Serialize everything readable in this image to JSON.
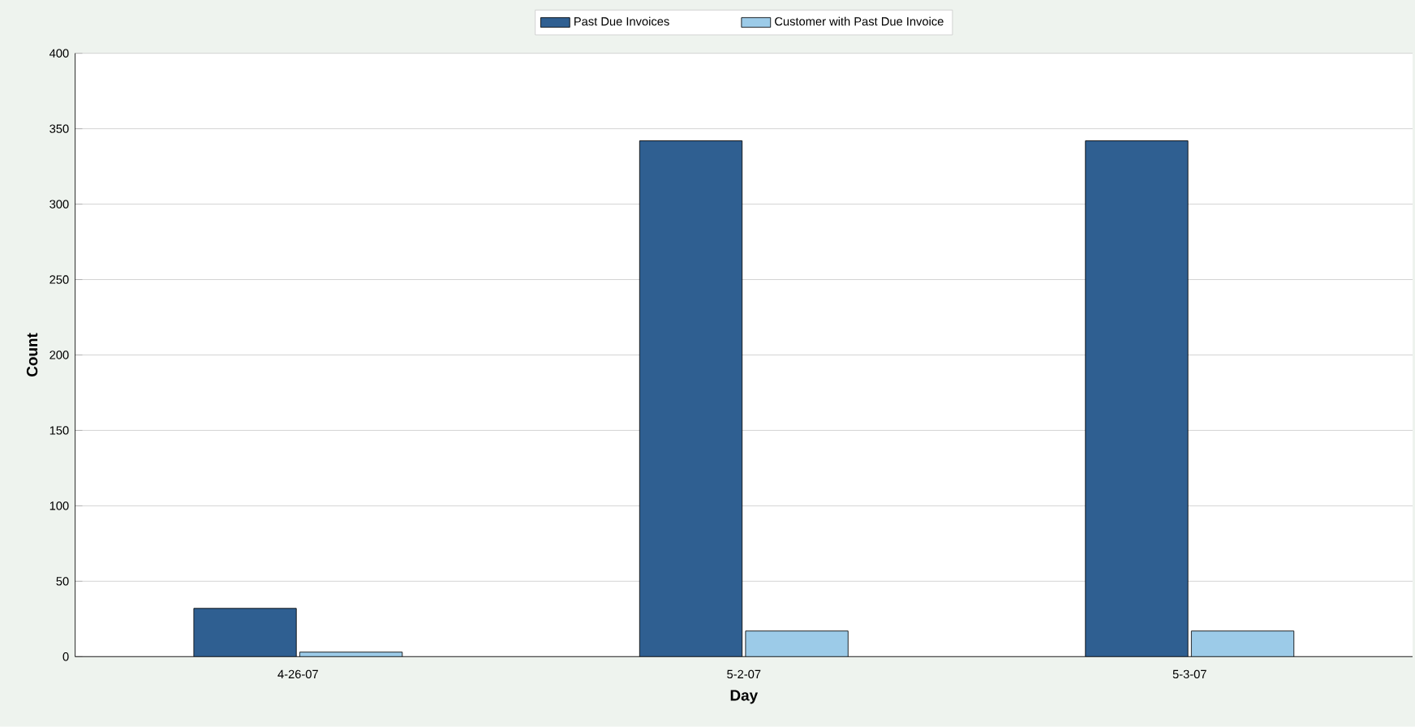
{
  "chart_data": {
    "type": "bar",
    "xlabel": "Day",
    "ylabel": "Count",
    "categories": [
      "4-26-07",
      "5-2-07",
      "5-3-07"
    ],
    "series": [
      {
        "name": "Past Due Invoices",
        "color": "#2f5f91",
        "values": [
          32,
          342,
          342
        ]
      },
      {
        "name": "Customer with Past Due Invoice",
        "color": "#9ccbe8",
        "values": [
          3,
          17,
          17
        ]
      }
    ],
    "ylim": [
      0,
      400
    ],
    "yticks": [
      0,
      50,
      100,
      150,
      200,
      250,
      300,
      350,
      400
    ],
    "grid": "y",
    "legend": "top"
  }
}
